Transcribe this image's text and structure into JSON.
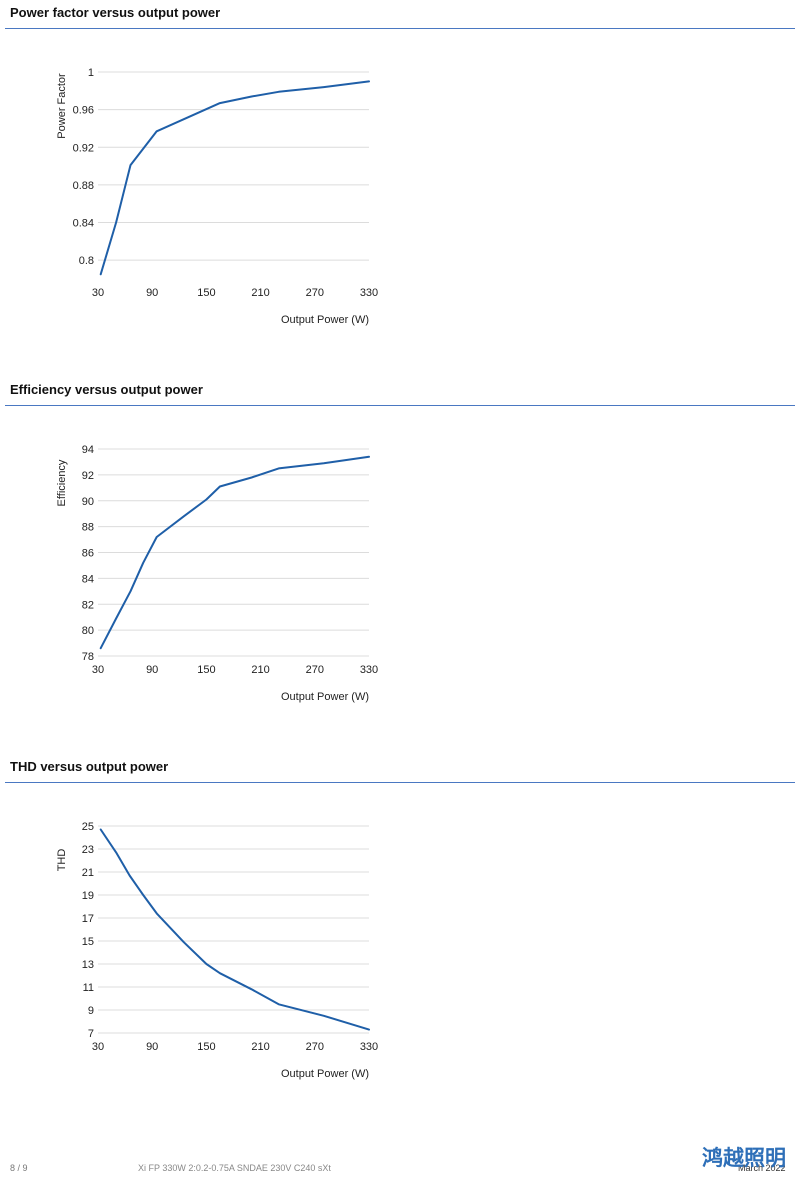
{
  "sections": [
    {
      "title": "Power factor versus output power"
    },
    {
      "title": "Efficiency versus output power"
    },
    {
      "title": "THD versus output power"
    }
  ],
  "chart_data": [
    {
      "type": "line",
      "title": "",
      "xlabel": "Output Power (W)",
      "ylabel": "Power Factor",
      "xlim": [
        30,
        330
      ],
      "ylim": [
        0.78,
        1.0
      ],
      "xticks": [
        30,
        90,
        150,
        210,
        270,
        330
      ],
      "yticks": [
        0.8,
        0.84,
        0.88,
        0.92,
        0.96,
        1
      ],
      "ytick_labels": [
        "0.8",
        "0.84",
        "0.88",
        "0.92",
        "0.96",
        "1"
      ],
      "grid": true,
      "color": "#1f5fa8",
      "series": [
        {
          "x": [
            33,
            50,
            66,
            95,
            130,
            165,
            200,
            230,
            280,
            330
          ],
          "y": [
            0.785,
            0.84,
            0.901,
            0.937,
            0.952,
            0.967,
            0.974,
            0.979,
            0.984,
            0.99
          ]
        }
      ]
    },
    {
      "type": "line",
      "title": "",
      "xlabel": "Output Power (W)",
      "ylabel": "Efficiency",
      "xlim": [
        30,
        330
      ],
      "ylim": [
        78,
        94
      ],
      "xticks": [
        30,
        90,
        150,
        210,
        270,
        330
      ],
      "yticks": [
        78,
        80,
        82,
        84,
        86,
        88,
        90,
        92,
        94
      ],
      "ytick_labels": [
        "78",
        "80",
        "82",
        "84",
        "86",
        "88",
        "90",
        "92",
        "94"
      ],
      "grid": true,
      "color": "#1f5fa8",
      "series": [
        {
          "x": [
            33,
            50,
            66,
            80,
            95,
            125,
            150,
            165,
            200,
            230,
            280,
            330
          ],
          "y": [
            78.6,
            80.9,
            83.0,
            85.2,
            87.2,
            88.8,
            90.1,
            91.1,
            91.8,
            92.5,
            92.9,
            93.4
          ]
        }
      ]
    },
    {
      "type": "line",
      "title": "",
      "xlabel": "Output Power (W)",
      "ylabel": "THD",
      "xlim": [
        30,
        330
      ],
      "ylim": [
        7,
        25
      ],
      "xticks": [
        30,
        90,
        150,
        210,
        270,
        330
      ],
      "yticks": [
        7,
        9,
        11,
        13,
        15,
        17,
        19,
        21,
        23,
        25
      ],
      "ytick_labels": [
        "7",
        "9",
        "11",
        "13",
        "15",
        "17",
        "19",
        "21",
        "23",
        "25"
      ],
      "grid": true,
      "color": "#1f5fa8",
      "series": [
        {
          "x": [
            33,
            50,
            65,
            80,
            95,
            125,
            150,
            165,
            200,
            230,
            280,
            330
          ],
          "y": [
            24.7,
            22.7,
            20.7,
            19.0,
            17.4,
            14.9,
            13.0,
            12.2,
            10.8,
            9.5,
            8.5,
            7.3
          ]
        }
      ]
    }
  ],
  "footer": {
    "page": "8 / 9",
    "document": "Xi FP 330W 2:0.2-0.75A SNDAE 230V C240 sXt",
    "date": "March 2022",
    "watermark": "鸿越照明"
  }
}
